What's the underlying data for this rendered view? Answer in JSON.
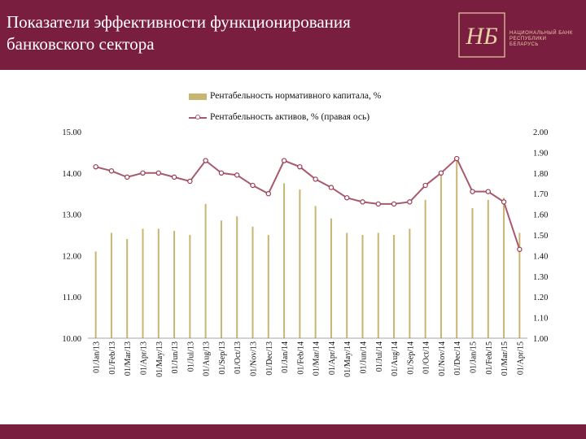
{
  "header": {
    "title": "Показатели эффективности функционирования банковского сектора",
    "logo_text": "НАЦИОНАЛЬНЫЙ БАНК РЕСПУБЛИКИ БЕЛАРУСЬ",
    "logo_monogram": "НБ"
  },
  "colors": {
    "header_bg": "#7a1e3f",
    "bar_color": "#c9b572",
    "line_color": "#a85a6c",
    "marker_color": "#9b3b55"
  },
  "chart_data": {
    "type": "bar+line",
    "title": "",
    "legend_position": "top",
    "grid": false,
    "categories": [
      "01/Jan/13",
      "01/Feb/13",
      "01/Mar/13",
      "01/Apr/13",
      "01/May/13",
      "01/Jun/13",
      "01/Jul/13",
      "01/Aug/13",
      "01/Sep/13",
      "01/Oct/13",
      "01/Nov/13",
      "01/Dec/13",
      "01/Jan/14",
      "01/Feb/14",
      "01/Mar/14",
      "01/Apr/14",
      "01/May/14",
      "01/Jun/14",
      "01/Jul/14",
      "01/Aug/14",
      "01/Sep/14",
      "01/Oct/14",
      "01/Nov/14",
      "01/Dec/14",
      "01/Jan/15",
      "01/Feb/15",
      "01/Mar/15",
      "01/Apr/15"
    ],
    "left_axis": {
      "min": 10,
      "max": 15,
      "ticks": [
        "10.00",
        "11.00",
        "12.00",
        "13.00",
        "14.00",
        "15.00"
      ]
    },
    "right_axis": {
      "min": 1.0,
      "max": 2.0,
      "ticks": [
        "1.00",
        "1.10",
        "1.20",
        "1.30",
        "1.40",
        "1.50",
        "1.60",
        "1.70",
        "1.80",
        "1.90",
        "2.00"
      ]
    },
    "series": [
      {
        "name": "Рентабельность нормативного капитала, %",
        "type": "bar",
        "axis": "left",
        "values": [
          12.1,
          12.55,
          12.4,
          12.65,
          12.65,
          12.6,
          12.5,
          13.25,
          12.85,
          12.95,
          12.7,
          12.5,
          13.75,
          13.6,
          13.2,
          12.9,
          12.55,
          12.5,
          12.55,
          12.5,
          12.65,
          13.35,
          13.95,
          14.3,
          13.15,
          13.35,
          13.4,
          12.55
        ]
      },
      {
        "name": "Рентабельность активов, % (правая ось)",
        "type": "line",
        "axis": "right",
        "values": [
          1.83,
          1.81,
          1.78,
          1.8,
          1.8,
          1.78,
          1.76,
          1.86,
          1.8,
          1.79,
          1.74,
          1.7,
          1.86,
          1.83,
          1.77,
          1.73,
          1.68,
          1.66,
          1.65,
          1.65,
          1.66,
          1.74,
          1.8,
          1.87,
          1.71,
          1.71,
          1.66,
          1.43
        ]
      }
    ]
  }
}
